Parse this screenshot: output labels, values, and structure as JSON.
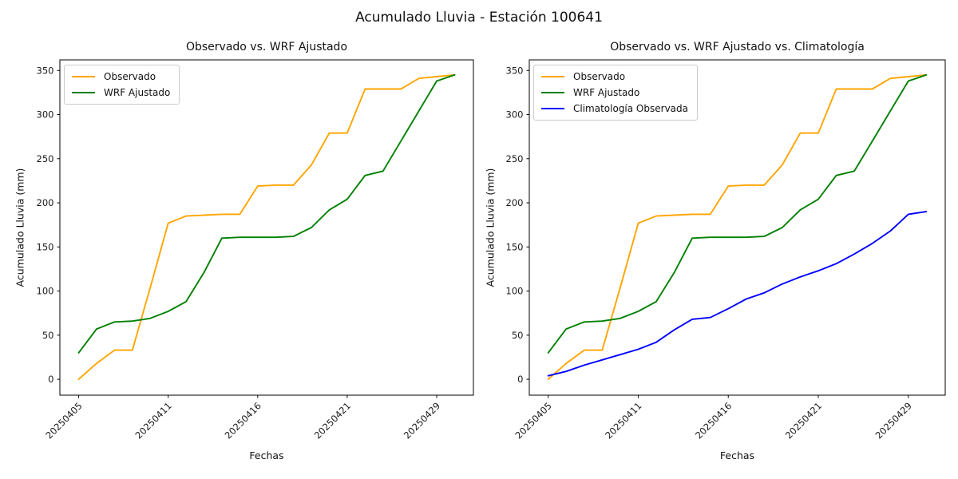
{
  "suptitle": "Acumulado Lluvia - Estación 100641",
  "chart_data": [
    {
      "type": "line",
      "title": "Observado vs. WRF Ajustado",
      "xlabel": "Fechas",
      "ylabel": "Acumulado Lluvia (mm)",
      "xtick_positions": [
        0,
        5,
        10,
        15,
        20
      ],
      "xtick_labels": [
        "20250405",
        "20250411",
        "20250416",
        "20250421",
        "20250429"
      ],
      "ytick_values": [
        0,
        50,
        100,
        150,
        200,
        250,
        300,
        350
      ],
      "xlim": [
        -1.05,
        22.05
      ],
      "ylim": [
        -18,
        362
      ],
      "grid": false,
      "legend_position": "upper left",
      "series": [
        {
          "name": "Observado",
          "color": "#FFA500",
          "values": [
            0,
            18,
            33,
            33,
            104,
            177,
            185,
            186,
            187,
            187,
            219,
            220,
            220,
            243,
            279,
            279,
            329,
            329,
            329,
            341,
            343,
            345
          ]
        },
        {
          "name": "WRF Ajustado",
          "color": "#008000",
          "values": [
            30,
            57,
            65,
            66,
            69,
            77,
            88,
            121,
            160,
            161,
            161,
            161,
            162,
            172,
            192,
            204,
            231,
            236,
            270,
            304,
            338,
            345
          ]
        }
      ]
    },
    {
      "type": "line",
      "title": "Observado vs. WRF Ajustado vs. Climatología",
      "xlabel": "Fechas",
      "ylabel": "Acumulado Lluvia (mm)",
      "xtick_positions": [
        0,
        5,
        10,
        15,
        20
      ],
      "xtick_labels": [
        "20250405",
        "20250411",
        "20250416",
        "20250421",
        "20250429"
      ],
      "ytick_values": [
        0,
        50,
        100,
        150,
        200,
        250,
        300,
        350
      ],
      "xlim": [
        -1.05,
        22.05
      ],
      "ylim": [
        -18,
        362
      ],
      "grid": false,
      "legend_position": "upper left",
      "series": [
        {
          "name": "Observado",
          "color": "#FFA500",
          "values": [
            0,
            18,
            33,
            33,
            104,
            177,
            185,
            186,
            187,
            187,
            219,
            220,
            220,
            243,
            279,
            279,
            329,
            329,
            329,
            341,
            343,
            345
          ]
        },
        {
          "name": "WRF Ajustado",
          "color": "#008000",
          "values": [
            30,
            57,
            65,
            66,
            69,
            77,
            88,
            121,
            160,
            161,
            161,
            161,
            162,
            172,
            192,
            204,
            231,
            236,
            270,
            304,
            338,
            345
          ]
        },
        {
          "name": "Climatología Observada",
          "color": "#0000FF",
          "values": [
            4,
            9,
            16,
            22,
            28,
            34,
            42,
            56,
            68,
            70,
            80,
            91,
            98,
            108,
            116,
            123,
            131,
            142,
            154,
            168,
            187,
            190
          ]
        }
      ]
    }
  ]
}
